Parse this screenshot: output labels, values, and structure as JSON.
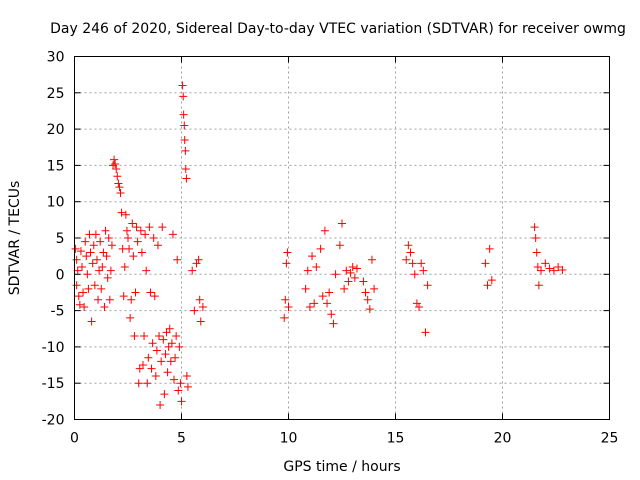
{
  "chart_data": {
    "type": "scatter",
    "title": "Day 246 of 2020, Sidereal Day-to-day VTEC variation (SDTVAR) for receiver owmg",
    "xlabel": "GPS time / hours",
    "ylabel": "SDTVAR / TECUs",
    "xlim": [
      0,
      25
    ],
    "ylim": [
      -20,
      30
    ],
    "xticks": [
      "0",
      "5",
      "10",
      "15",
      "20",
      "25"
    ],
    "yticks": [
      "-20",
      "-15",
      "-10",
      "-5",
      "0",
      "5",
      "10",
      "15",
      "20",
      "25",
      "30"
    ],
    "grid": true,
    "marker": "+",
    "color": "#ff0000",
    "series": [
      {
        "name": "SDTVAR",
        "points": [
          [
            0.05,
            3.5
          ],
          [
            0.1,
            2.0
          ],
          [
            0.1,
            -1.5
          ],
          [
            0.15,
            0.5
          ],
          [
            0.2,
            -3.0
          ],
          [
            0.25,
            -4.2
          ],
          [
            0.3,
            3.2
          ],
          [
            0.35,
            1.0
          ],
          [
            0.4,
            -2.5
          ],
          [
            0.45,
            -4.5
          ],
          [
            0.5,
            4.5
          ],
          [
            0.55,
            2.5
          ],
          [
            0.6,
            0.0
          ],
          [
            0.65,
            -2.0
          ],
          [
            0.7,
            5.5
          ],
          [
            0.75,
            3.0
          ],
          [
            0.8,
            -6.5
          ],
          [
            0.85,
            1.5
          ],
          [
            0.9,
            4.0
          ],
          [
            0.95,
            -1.5
          ],
          [
            1.0,
            5.5
          ],
          [
            1.05,
            2.0
          ],
          [
            1.1,
            -3.5
          ],
          [
            1.15,
            0.5
          ],
          [
            1.2,
            4.5
          ],
          [
            1.25,
            -2.0
          ],
          [
            1.3,
            1.0
          ],
          [
            1.35,
            3.0
          ],
          [
            1.4,
            -4.5
          ],
          [
            1.45,
            6.0
          ],
          [
            1.5,
            2.5
          ],
          [
            1.55,
            -0.5
          ],
          [
            1.6,
            5.0
          ],
          [
            1.65,
            -3.5
          ],
          [
            1.7,
            0.5
          ],
          [
            1.75,
            4.0
          ],
          [
            1.8,
            15.0
          ],
          [
            1.85,
            15.8
          ],
          [
            1.9,
            15.2
          ],
          [
            1.95,
            14.5
          ],
          [
            2.0,
            13.5
          ],
          [
            2.05,
            12.5
          ],
          [
            2.1,
            12.0
          ],
          [
            2.15,
            11.2
          ],
          [
            2.2,
            8.5
          ],
          [
            2.25,
            3.5
          ],
          [
            2.3,
            -3.0
          ],
          [
            2.35,
            1.0
          ],
          [
            2.4,
            8.2
          ],
          [
            2.45,
            6.0
          ],
          [
            2.5,
            5.0
          ],
          [
            2.55,
            3.5
          ],
          [
            2.6,
            -6.0
          ],
          [
            2.65,
            -3.5
          ],
          [
            2.7,
            7.0
          ],
          [
            2.75,
            2.5
          ],
          [
            2.8,
            -8.5
          ],
          [
            2.85,
            -2.5
          ],
          [
            2.9,
            6.5
          ],
          [
            2.95,
            4.5
          ],
          [
            3.0,
            -15.0
          ],
          [
            3.05,
            -13.0
          ],
          [
            3.1,
            6.0
          ],
          [
            3.15,
            3.0
          ],
          [
            3.2,
            -12.5
          ],
          [
            3.25,
            -8.5
          ],
          [
            3.3,
            5.5
          ],
          [
            3.35,
            0.5
          ],
          [
            3.4,
            -15.0
          ],
          [
            3.45,
            -11.5
          ],
          [
            3.5,
            6.5
          ],
          [
            3.55,
            -2.5
          ],
          [
            3.6,
            -13.0
          ],
          [
            3.65,
            -9.5
          ],
          [
            3.7,
            5.0
          ],
          [
            3.75,
            -3.0
          ],
          [
            3.8,
            -14.0
          ],
          [
            3.85,
            -10.5
          ],
          [
            3.9,
            4.0
          ],
          [
            3.95,
            -8.5
          ],
          [
            4.0,
            -18.0
          ],
          [
            4.05,
            -12.0
          ],
          [
            4.1,
            6.5
          ],
          [
            4.15,
            -9.0
          ],
          [
            4.2,
            -16.5
          ],
          [
            4.25,
            -11.0
          ],
          [
            4.3,
            -8.0
          ],
          [
            4.35,
            -13.5
          ],
          [
            4.4,
            -10.0
          ],
          [
            4.45,
            -7.5
          ],
          [
            4.5,
            -12.0
          ],
          [
            4.55,
            -9.5
          ],
          [
            4.6,
            5.5
          ],
          [
            4.65,
            -14.5
          ],
          [
            4.7,
            -11.5
          ],
          [
            4.75,
            -8.5
          ],
          [
            4.8,
            2.0
          ],
          [
            4.85,
            -16.0
          ],
          [
            4.9,
            -10.0
          ],
          [
            4.95,
            -15.0
          ],
          [
            5.0,
            -17.5
          ],
          [
            5.05,
            26.0
          ],
          [
            5.08,
            24.5
          ],
          [
            5.1,
            22.0
          ],
          [
            5.13,
            20.5
          ],
          [
            5.15,
            18.5
          ],
          [
            5.18,
            17.0
          ],
          [
            5.2,
            14.5
          ],
          [
            5.23,
            13.2
          ],
          [
            5.25,
            -14.0
          ],
          [
            5.3,
            -15.5
          ],
          [
            5.5,
            0.5
          ],
          [
            5.6,
            -5.0
          ],
          [
            5.7,
            1.5
          ],
          [
            5.8,
            2.0
          ],
          [
            5.85,
            -3.5
          ],
          [
            5.9,
            -6.5
          ],
          [
            6.0,
            -4.5
          ],
          [
            9.8,
            -6.0
          ],
          [
            9.85,
            -3.5
          ],
          [
            9.9,
            1.5
          ],
          [
            9.95,
            3.0
          ],
          [
            10.0,
            -4.5
          ],
          [
            10.8,
            -2.0
          ],
          [
            10.9,
            0.5
          ],
          [
            11.0,
            -4.5
          ],
          [
            11.1,
            2.5
          ],
          [
            11.2,
            -4.0
          ],
          [
            11.3,
            1.0
          ],
          [
            11.5,
            3.5
          ],
          [
            11.6,
            -3.0
          ],
          [
            11.7,
            6.0
          ],
          [
            11.8,
            -4.0
          ],
          [
            11.9,
            -2.5
          ],
          [
            12.0,
            -5.5
          ],
          [
            12.1,
            -6.8
          ],
          [
            12.2,
            0.0
          ],
          [
            12.4,
            4.0
          ],
          [
            12.5,
            7.0
          ],
          [
            12.6,
            -2.0
          ],
          [
            12.7,
            0.5
          ],
          [
            12.8,
            -1.0
          ],
          [
            12.9,
            0.2
          ],
          [
            13.0,
            1.0
          ],
          [
            13.1,
            -0.5
          ],
          [
            13.2,
            0.8
          ],
          [
            13.5,
            -1.0
          ],
          [
            13.6,
            -2.5
          ],
          [
            13.7,
            -3.5
          ],
          [
            13.8,
            -4.8
          ],
          [
            13.9,
            2.0
          ],
          [
            14.0,
            -2.0
          ],
          [
            15.5,
            2.0
          ],
          [
            15.6,
            4.0
          ],
          [
            15.7,
            3.0
          ],
          [
            15.8,
            1.5
          ],
          [
            15.9,
            0.0
          ],
          [
            16.0,
            -4.0
          ],
          [
            16.1,
            -4.5
          ],
          [
            16.2,
            1.5
          ],
          [
            16.3,
            0.5
          ],
          [
            16.4,
            -8.0
          ],
          [
            16.5,
            -1.5
          ],
          [
            19.2,
            1.5
          ],
          [
            19.3,
            -1.5
          ],
          [
            19.4,
            3.5
          ],
          [
            19.5,
            -0.8
          ],
          [
            21.5,
            6.5
          ],
          [
            21.55,
            5.0
          ],
          [
            21.6,
            3.0
          ],
          [
            21.65,
            1.0
          ],
          [
            21.7,
            -1.5
          ],
          [
            21.8,
            0.5
          ],
          [
            22.0,
            1.5
          ],
          [
            22.2,
            0.8
          ],
          [
            22.4,
            0.5
          ],
          [
            22.6,
            1.0
          ],
          [
            22.8,
            0.6
          ]
        ]
      }
    ]
  }
}
